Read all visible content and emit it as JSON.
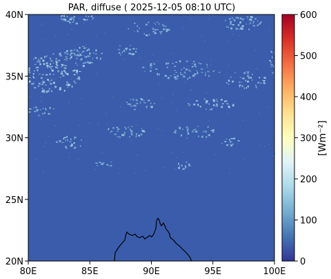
{
  "title": "PAR, diffuse ( 2025-12-05 08:10 UTC)",
  "map": {
    "x_ticks": [
      "80E",
      "85E",
      "90E",
      "95E",
      "100E"
    ],
    "y_ticks": [
      "20N",
      "25N",
      "30N",
      "35N",
      "40N"
    ],
    "lon_range": [
      80,
      100
    ],
    "lat_range": [
      20,
      40
    ],
    "background_color": "#3a5cab"
  },
  "colorbar": {
    "ticks": [
      "0",
      "100",
      "200",
      "300",
      "400",
      "500",
      "600"
    ],
    "range": [
      0,
      600
    ],
    "label": "[Wm⁻²]",
    "colormap": "RdYlBu_r",
    "colors": [
      "#313695",
      "#4575b4",
      "#74add1",
      "#abd9e9",
      "#e0f3f8",
      "#ffffbf",
      "#fee090",
      "#fdae61",
      "#f46d43",
      "#d73027",
      "#a50026"
    ]
  }
}
